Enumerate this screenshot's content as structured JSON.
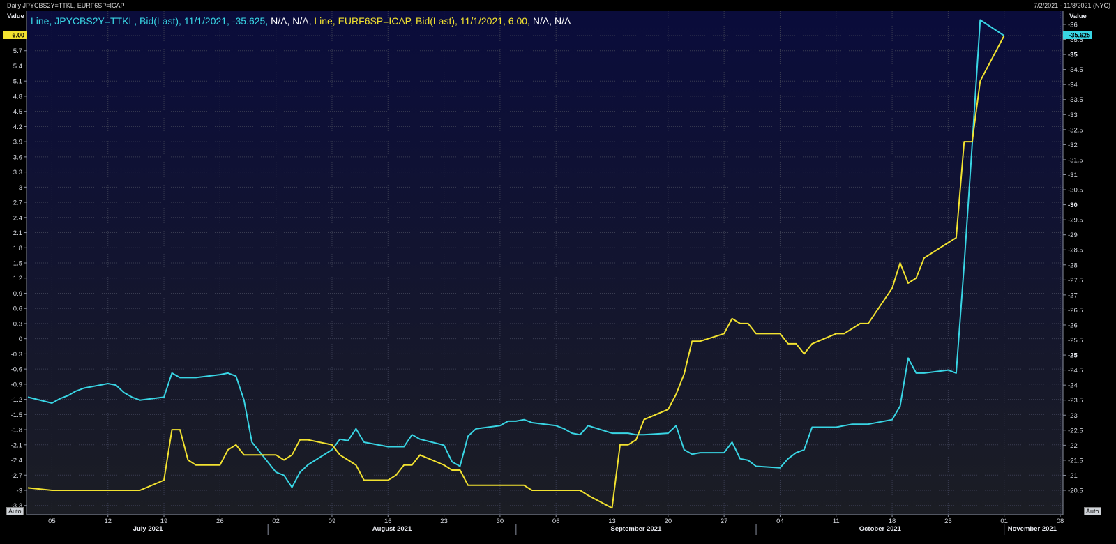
{
  "window": {
    "title": "Daily JPYCBS2Y=TTKL, EURF6SP=ICAP",
    "date_range": "7/2/2021 - 11/8/2021 (NYC)"
  },
  "axes": {
    "left_label": "Value",
    "right_label": "Value",
    "auto_left": "Auto",
    "auto_right": "Auto"
  },
  "legend": {
    "cyan": {
      "text": "Line, JPYCBS2Y=TTKL, Bid(Last), 11/1/2021, -35.625,",
      "na": " N/A, N/A,",
      "color": "#39d5e4"
    },
    "yellow": {
      "text": " Line, EURF6SP=ICAP, Bid(Last), 11/1/2021, 6.00,",
      "na": " N/A, N/A",
      "color": "#f2e230"
    }
  },
  "badges": {
    "left": "6.00",
    "right": "-35.625"
  },
  "chart_data": {
    "type": "line",
    "x_start": "2021-07-02",
    "xlim": [
      "2021-07-02",
      "2021-11-08"
    ],
    "x_ticks": [
      {
        "label": "05",
        "date": "2021-07-05"
      },
      {
        "label": "12",
        "date": "2021-07-12"
      },
      {
        "label": "19",
        "date": "2021-07-19"
      },
      {
        "label": "26",
        "date": "2021-07-26"
      },
      {
        "label": "02",
        "date": "2021-08-02"
      },
      {
        "label": "09",
        "date": "2021-08-09"
      },
      {
        "label": "16",
        "date": "2021-08-16"
      },
      {
        "label": "23",
        "date": "2021-08-23"
      },
      {
        "label": "30",
        "date": "2021-08-30"
      },
      {
        "label": "06",
        "date": "2021-09-06"
      },
      {
        "label": "13",
        "date": "2021-09-13"
      },
      {
        "label": "20",
        "date": "2021-09-20"
      },
      {
        "label": "27",
        "date": "2021-09-27"
      },
      {
        "label": "04",
        "date": "2021-10-04"
      },
      {
        "label": "11",
        "date": "2021-10-11"
      },
      {
        "label": "18",
        "date": "2021-10-18"
      },
      {
        "label": "25",
        "date": "2021-10-25"
      },
      {
        "label": "01",
        "date": "2021-11-01"
      },
      {
        "label": "08",
        "date": "2021-11-08"
      }
    ],
    "months": [
      {
        "label": "July 2021",
        "from": "2021-07-02",
        "to": "2021-08-01"
      },
      {
        "label": "August 2021",
        "from": "2021-08-01",
        "to": "2021-09-01"
      },
      {
        "label": "September 2021",
        "from": "2021-09-01",
        "to": "2021-10-01"
      },
      {
        "label": "October 2021",
        "from": "2021-10-01",
        "to": "2021-11-01"
      },
      {
        "label": "November 2021",
        "from": "2021-11-01",
        "to": "2021-11-08"
      }
    ],
    "y_left": {
      "ylim": [
        -3.4,
        6.3
      ],
      "ticks": [
        6.0,
        5.7,
        5.4,
        5.1,
        4.8,
        4.5,
        4.2,
        3.9,
        3.6,
        3.3,
        3,
        2.7,
        2.4,
        2.1,
        1.8,
        1.5,
        1.2,
        0.9,
        0.6,
        0.3,
        0,
        -0.3,
        -0.6,
        -0.9,
        -1.2,
        -1.5,
        -1.8,
        -2.1,
        -2.4,
        -2.7,
        -3,
        -3.3
      ],
      "tick_labels": [
        "6.00",
        "5.7",
        "5.4",
        "5.1",
        "4.8",
        "4.5",
        "4.2",
        "3.9",
        "3.6",
        "3.3",
        "3",
        "2.7",
        "2.4",
        "2.1",
        "1.8",
        "1.5",
        "1.2",
        "0.9",
        "0.6",
        "0.3",
        "0",
        "-0.3",
        "-0.6",
        "-0.9",
        "-1.2",
        "-1.5",
        "-1.8",
        "-2.1",
        "-2.4",
        "-2.7",
        "-3",
        "-3.3"
      ]
    },
    "y_right": {
      "ylim": [
        -20.15,
        -36.22
      ],
      "ticks": [
        -36,
        -35.5,
        -35,
        -34.5,
        -34,
        -33.5,
        -33,
        -32.5,
        -32,
        -31.5,
        -31,
        -30.5,
        -30,
        -29.5,
        -29,
        -28.5,
        -28,
        -27.5,
        -27,
        -26.5,
        -26,
        -25.5,
        -25,
        -24.5,
        -24,
        -23.5,
        -23,
        -22.5,
        -22,
        -21.5,
        -21,
        -20.5
      ],
      "tick_labels": [
        "-36",
        "-35.5",
        "-35",
        "-34.5",
        "-34",
        "-33.5",
        "-33",
        "-32.5",
        "-32",
        "-31.5",
        "-31",
        "-30.5",
        "-30",
        "-29.5",
        "-29",
        "-28.5",
        "-28",
        "-27.5",
        "-27",
        "-26.5",
        "-26",
        "-25.5",
        "-25",
        "-24.5",
        "-24",
        "-23.5",
        "-23",
        "-22.5",
        "-22",
        "-21.5",
        "-21",
        "-20.5"
      ],
      "bold_ticks": [
        -35,
        -30,
        -25
      ]
    },
    "series": [
      {
        "name": "JPYCBS2Y=TTKL",
        "color": "#39d5e4",
        "axis": "right",
        "dates": [
          "2021-07-02",
          "2021-07-05",
          "2021-07-06",
          "2021-07-07",
          "2021-07-08",
          "2021-07-09",
          "2021-07-12",
          "2021-07-13",
          "2021-07-14",
          "2021-07-15",
          "2021-07-16",
          "2021-07-19",
          "2021-07-20",
          "2021-07-21",
          "2021-07-22",
          "2021-07-23",
          "2021-07-26",
          "2021-07-27",
          "2021-07-28",
          "2021-07-29",
          "2021-07-30",
          "2021-08-02",
          "2021-08-03",
          "2021-08-04",
          "2021-08-05",
          "2021-08-06",
          "2021-08-09",
          "2021-08-10",
          "2021-08-11",
          "2021-08-12",
          "2021-08-13",
          "2021-08-16",
          "2021-08-17",
          "2021-08-18",
          "2021-08-19",
          "2021-08-20",
          "2021-08-23",
          "2021-08-24",
          "2021-08-25",
          "2021-08-26",
          "2021-08-27",
          "2021-08-30",
          "2021-08-31",
          "2021-09-01",
          "2021-09-02",
          "2021-09-03",
          "2021-09-06",
          "2021-09-07",
          "2021-09-08",
          "2021-09-09",
          "2021-09-10",
          "2021-09-13",
          "2021-09-14",
          "2021-09-15",
          "2021-09-16",
          "2021-09-17",
          "2021-09-20",
          "2021-09-21",
          "2021-09-22",
          "2021-09-23",
          "2021-09-24",
          "2021-09-27",
          "2021-09-28",
          "2021-09-29",
          "2021-09-30",
          "2021-10-01",
          "2021-10-04",
          "2021-10-05",
          "2021-10-06",
          "2021-10-07",
          "2021-10-08",
          "2021-10-11",
          "2021-10-12",
          "2021-10-13",
          "2021-10-14",
          "2021-10-15",
          "2021-10-18",
          "2021-10-19",
          "2021-10-20",
          "2021-10-21",
          "2021-10-22",
          "2021-10-25",
          "2021-10-26",
          "2021-10-27",
          "2021-10-28",
          "2021-10-29",
          "2021-11-01"
        ],
        "values": [
          -23.6,
          -23.4,
          -23.55,
          -23.65,
          -23.8,
          -23.9,
          -24.05,
          -24.0,
          -23.75,
          -23.6,
          -23.5,
          -23.6,
          -24.4,
          -24.25,
          -24.25,
          -24.25,
          -24.35,
          -24.4,
          -24.3,
          -23.5,
          -22.1,
          -21.1,
          -21.0,
          -20.6,
          -21.1,
          -21.35,
          -21.85,
          -22.2,
          -22.15,
          -22.55,
          -22.1,
          -21.95,
          -21.95,
          -21.95,
          -22.35,
          -22.2,
          -22.0,
          -21.45,
          -21.3,
          -22.3,
          -22.55,
          -22.65,
          -22.8,
          -22.8,
          -22.85,
          -22.75,
          -22.65,
          -22.55,
          -22.4,
          -22.35,
          -22.65,
          -22.4,
          -22.4,
          -22.4,
          -22.35,
          -22.35,
          -22.4,
          -22.65,
          -21.85,
          -21.7,
          -21.75,
          -21.75,
          -22.1,
          -21.55,
          -21.5,
          -21.3,
          -21.25,
          -21.55,
          -21.75,
          -21.85,
          -22.6,
          -22.6,
          -22.65,
          -22.7,
          -22.7,
          -22.7,
          -22.85,
          -23.3,
          -24.9,
          -24.4,
          -24.4,
          -24.5,
          -24.4,
          -28.0,
          -32.0,
          -36.15,
          -35.625
        ]
      },
      {
        "name": "EURF6SP=ICAP",
        "color": "#f2e230",
        "axis": "left",
        "dates": [
          "2021-07-02",
          "2021-07-05",
          "2021-07-06",
          "2021-07-07",
          "2021-07-08",
          "2021-07-09",
          "2021-07-12",
          "2021-07-13",
          "2021-07-14",
          "2021-07-15",
          "2021-07-16",
          "2021-07-19",
          "2021-07-20",
          "2021-07-21",
          "2021-07-22",
          "2021-07-23",
          "2021-07-26",
          "2021-07-27",
          "2021-07-28",
          "2021-07-29",
          "2021-07-30",
          "2021-08-02",
          "2021-08-03",
          "2021-08-04",
          "2021-08-05",
          "2021-08-06",
          "2021-08-09",
          "2021-08-10",
          "2021-08-11",
          "2021-08-12",
          "2021-08-13",
          "2021-08-16",
          "2021-08-17",
          "2021-08-18",
          "2021-08-19",
          "2021-08-20",
          "2021-08-23",
          "2021-08-24",
          "2021-08-25",
          "2021-08-26",
          "2021-08-27",
          "2021-08-30",
          "2021-08-31",
          "2021-09-01",
          "2021-09-02",
          "2021-09-03",
          "2021-09-06",
          "2021-09-07",
          "2021-09-08",
          "2021-09-09",
          "2021-09-10",
          "2021-09-13",
          "2021-09-14",
          "2021-09-15",
          "2021-09-16",
          "2021-09-17",
          "2021-09-20",
          "2021-09-21",
          "2021-09-22",
          "2021-09-23",
          "2021-09-24",
          "2021-09-27",
          "2021-09-28",
          "2021-09-29",
          "2021-09-30",
          "2021-10-01",
          "2021-10-04",
          "2021-10-05",
          "2021-10-06",
          "2021-10-07",
          "2021-10-08",
          "2021-10-11",
          "2021-10-12",
          "2021-10-13",
          "2021-10-14",
          "2021-10-15",
          "2021-10-18",
          "2021-10-19",
          "2021-10-20",
          "2021-10-21",
          "2021-10-22",
          "2021-10-25",
          "2021-10-26",
          "2021-10-27",
          "2021-10-28",
          "2021-10-29",
          "2021-11-01"
        ],
        "values": [
          -2.95,
          -3.0,
          -3.0,
          -3.0,
          -3.0,
          -3.0,
          -3.0,
          -3.0,
          -3.0,
          -3.0,
          -3.0,
          -2.8,
          -1.8,
          -1.8,
          -2.4,
          -2.5,
          -2.5,
          -2.2,
          -2.1,
          -2.3,
          -2.3,
          -2.3,
          -2.4,
          -2.3,
          -2.0,
          -2.0,
          -2.1,
          -2.3,
          -2.4,
          -2.5,
          -2.8,
          -2.8,
          -2.7,
          -2.5,
          -2.5,
          -2.3,
          -2.5,
          -2.6,
          -2.6,
          -2.9,
          -2.9,
          -2.9,
          -2.9,
          -2.9,
          -2.9,
          -3.0,
          -3.0,
          -3.0,
          -3.0,
          -3.0,
          -3.1,
          -3.35,
          -2.1,
          -2.1,
          -2.0,
          -1.6,
          -1.4,
          -1.1,
          -0.7,
          -0.05,
          -0.05,
          0.1,
          0.4,
          0.3,
          0.3,
          0.1,
          0.1,
          -0.1,
          -0.1,
          -0.3,
          -0.1,
          0.1,
          0.1,
          0.2,
          0.3,
          0.3,
          1.0,
          1.5,
          1.1,
          1.2,
          1.6,
          1.9,
          2.0,
          3.9,
          3.9,
          5.1,
          6.0
        ]
      }
    ]
  }
}
